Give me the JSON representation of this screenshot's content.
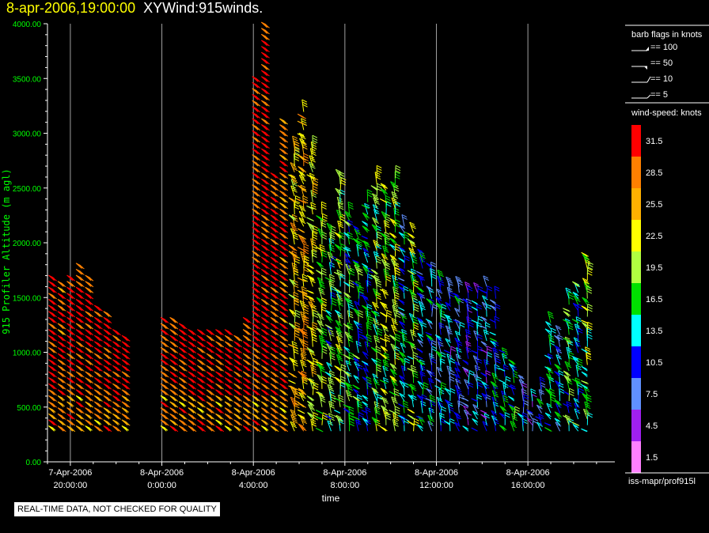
{
  "title": {
    "datetime": "8-apr-2006,19:00:00",
    "name": "XYWind:915winds."
  },
  "footer_note": "REAL-TIME DATA, NOT CHECKED FOR QUALITY",
  "chart_data": {
    "type": "wind-barb-time-height",
    "ylabel": "915 Profiler Altitude (m agl)",
    "xlabel": "time",
    "ylim": [
      0,
      4000
    ],
    "y_ticks": [
      "0.00",
      "500.00",
      "1000.00",
      "1500.00",
      "2000.00",
      "2500.00",
      "3000.00",
      "3500.00",
      "4000.00"
    ],
    "x_ticks": [
      {
        "line1": "7-Apr-2006",
        "line2": "20:00:00"
      },
      {
        "line1": "8-Apr-2006",
        "line2": "0:00:00"
      },
      {
        "line1": "8-Apr-2006",
        "line2": "4:00:00"
      },
      {
        "line1": "8-Apr-2006",
        "line2": "8:00:00"
      },
      {
        "line1": "8-Apr-2006",
        "line2": "12:00:00"
      },
      {
        "line1": "8-Apr-2006",
        "line2": "16:00:00"
      }
    ],
    "x_range_hours": [
      -1.0,
      23.8
    ],
    "grid_x": true,
    "legend_barb_title": "barb flags in knots",
    "legend_barbs": [
      "== 100",
      "== 50",
      "== 10",
      "== 5"
    ],
    "legend_colorbar_title": "wind-speed: knots",
    "colorbar": [
      {
        "label": "31.5",
        "color": "#ff0000"
      },
      {
        "label": "28.5",
        "color": "#ff8000"
      },
      {
        "label": "25.5",
        "color": "#ffb000"
      },
      {
        "label": "22.5",
        "color": "#ffff00"
      },
      {
        "label": "19.5",
        "color": "#b0ff40"
      },
      {
        "label": "16.5",
        "color": "#00e000"
      },
      {
        "label": "13.5",
        "color": "#00ffff"
      },
      {
        "label": "10.5",
        "color": "#0000ff"
      },
      {
        "label": "7.5",
        "color": "#6090ff"
      },
      {
        "label": "4.5",
        "color": "#a020f0"
      },
      {
        "label": "1.5",
        "color": "#ff80ff"
      }
    ],
    "source_label": "iss-mapr/prof915l",
    "profiles": [
      {
        "t": -0.7,
        "top": 1700,
        "speed": 31
      },
      {
        "t": -0.3,
        "top": 1650,
        "speed": 30
      },
      {
        "t": 0.1,
        "top": 1700,
        "speed": 31
      },
      {
        "t": 0.5,
        "top": 1780,
        "speed": 31
      },
      {
        "t": 0.9,
        "top": 1700,
        "speed": 31
      },
      {
        "t": 1.3,
        "top": 1400,
        "speed": 31
      },
      {
        "t": 1.7,
        "top": 1350,
        "speed": 31
      },
      {
        "t": 2.1,
        "top": 1200,
        "speed": 31
      },
      {
        "t": 2.5,
        "top": 1150,
        "speed": 31
      },
      {
        "t": 4.2,
        "top": 1320,
        "speed": 31
      },
      {
        "t": 4.6,
        "top": 1300,
        "speed": 31
      },
      {
        "t": 5.0,
        "top": 1250,
        "speed": 31
      },
      {
        "t": 5.4,
        "top": 1200,
        "speed": 31
      },
      {
        "t": 5.8,
        "top": 1200,
        "speed": 31
      },
      {
        "t": 6.2,
        "top": 1200,
        "speed": 31
      },
      {
        "t": 6.6,
        "top": 1200,
        "speed": 31
      },
      {
        "t": 7.0,
        "top": 1200,
        "speed": 31
      },
      {
        "t": 7.4,
        "top": 1150,
        "speed": 31
      },
      {
        "t": 7.8,
        "top": 1300,
        "speed": 31
      },
      {
        "t": 8.2,
        "top": 3500,
        "speed": 31
      },
      {
        "t": 8.6,
        "top": 4000,
        "speed": 31
      },
      {
        "t": 9.0,
        "top": 2600,
        "speed": 31
      },
      {
        "t": 9.4,
        "top": 3100,
        "speed": 29
      },
      {
        "t": 9.8,
        "top": 2900,
        "speed": 24
      },
      {
        "t": 10.2,
        "top": 3200,
        "speed": 25
      },
      {
        "t": 10.6,
        "top": 2900,
        "speed": 22
      },
      {
        "t": 11.0,
        "top": 2300,
        "speed": 20
      },
      {
        "t": 11.4,
        "top": 2100,
        "speed": 16
      },
      {
        "t": 11.8,
        "top": 2600,
        "speed": 18
      },
      {
        "t": 12.2,
        "top": 2300,
        "speed": 15
      },
      {
        "t": 12.6,
        "top": 2100,
        "speed": 14
      },
      {
        "t": 13.0,
        "top": 2400,
        "speed": 13
      },
      {
        "t": 13.4,
        "top": 2600,
        "speed": 17
      },
      {
        "t": 13.8,
        "top": 2500,
        "speed": 19
      },
      {
        "t": 14.2,
        "top": 2600,
        "speed": 19
      },
      {
        "t": 14.6,
        "top": 2200,
        "speed": 12
      },
      {
        "t": 15.0,
        "top": 2100,
        "speed": 18
      },
      {
        "t": 15.4,
        "top": 1900,
        "speed": 13
      },
      {
        "t": 15.8,
        "top": 1800,
        "speed": 11
      },
      {
        "t": 16.2,
        "top": 1700,
        "speed": 12
      },
      {
        "t": 16.6,
        "top": 1600,
        "speed": 10
      },
      {
        "t": 17.0,
        "top": 1600,
        "speed": 11
      },
      {
        "t": 17.4,
        "top": 1550,
        "speed": 9
      },
      {
        "t": 17.8,
        "top": 1550,
        "speed": 10
      },
      {
        "t": 18.2,
        "top": 1600,
        "speed": 10
      },
      {
        "t": 18.6,
        "top": 1500,
        "speed": 12
      },
      {
        "t": 19.0,
        "top": 1000,
        "speed": 14
      },
      {
        "t": 19.4,
        "top": 900,
        "speed": 14
      },
      {
        "t": 19.8,
        "top": 750,
        "speed": 10
      },
      {
        "t": 20.2,
        "top": 600,
        "speed": 8
      },
      {
        "t": 20.6,
        "top": 700,
        "speed": 12
      },
      {
        "t": 21.0,
        "top": 1300,
        "speed": 14
      },
      {
        "t": 21.4,
        "top": 1200,
        "speed": 12
      },
      {
        "t": 21.8,
        "top": 1500,
        "speed": 16
      },
      {
        "t": 22.2,
        "top": 1600,
        "speed": 14
      },
      {
        "t": 22.6,
        "top": 1900,
        "speed": 18
      }
    ]
  }
}
